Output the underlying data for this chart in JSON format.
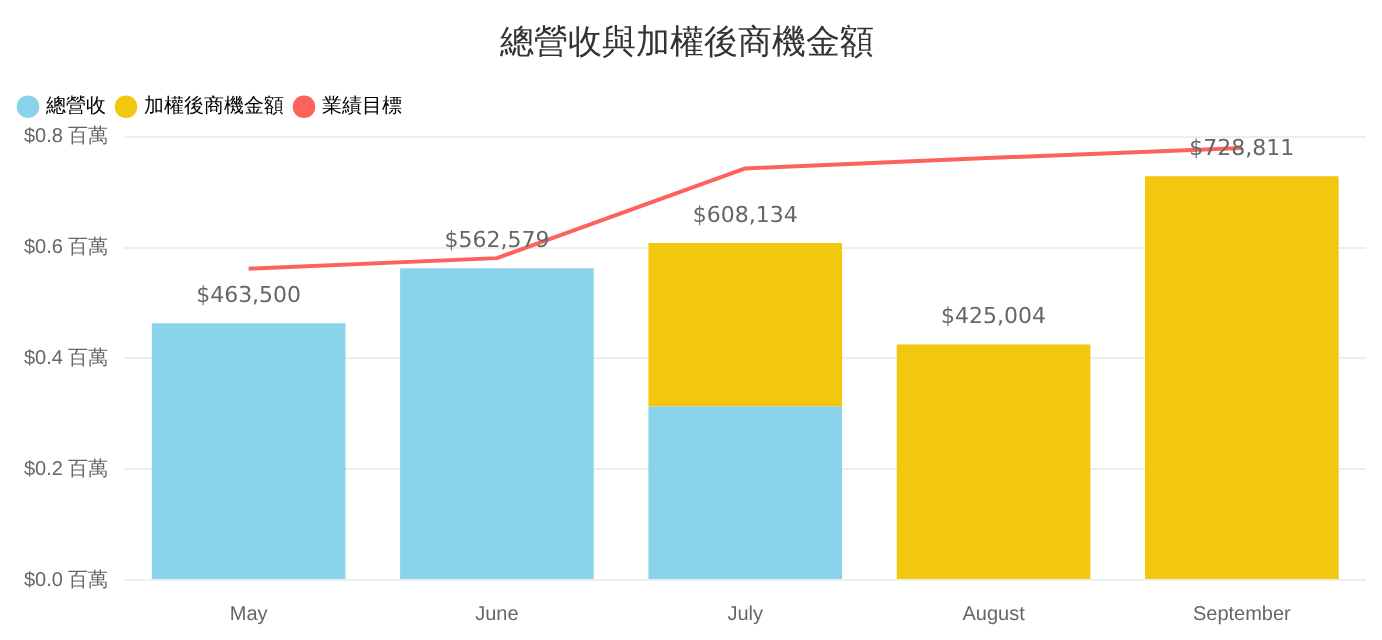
{
  "chart_data": {
    "type": "bar",
    "title": "總營收與加權後商機金額",
    "stacked": true,
    "categories": [
      "May",
      "June",
      "July",
      "August",
      "September"
    ],
    "series": [
      {
        "name": "總營收",
        "color": "#8ad4eb",
        "values": [
          0.4635,
          0.562579,
          0.313,
          null,
          null
        ]
      },
      {
        "name": "加權後商機金額",
        "color": "#f2c80f",
        "values": [
          null,
          null,
          0.295134,
          0.425004,
          0.728811
        ]
      },
      {
        "name": "業績目標",
        "type": "line",
        "color": "#fd625e",
        "values": [
          0.562,
          0.581,
          0.743,
          0.762,
          0.78
        ]
      }
    ],
    "totals": [
      "$463,500",
      "$562,579",
      "$608,134",
      "$425,004",
      "$728,811"
    ],
    "ylim": [
      0,
      0.8
    ],
    "yticks": [
      {
        "value": 0,
        "label": "$0.0 百萬"
      },
      {
        "value": 0.2,
        "label": "$0.2 百萬"
      },
      {
        "value": 0.4,
        "label": "$0.4 百萬"
      },
      {
        "value": 0.6,
        "label": "$0.6 百萬"
      },
      {
        "value": 0.8,
        "label": "$0.8 百萬"
      }
    ],
    "grid": "y",
    "legend": "top left",
    "marker": "none",
    "line_style": "solid"
  }
}
